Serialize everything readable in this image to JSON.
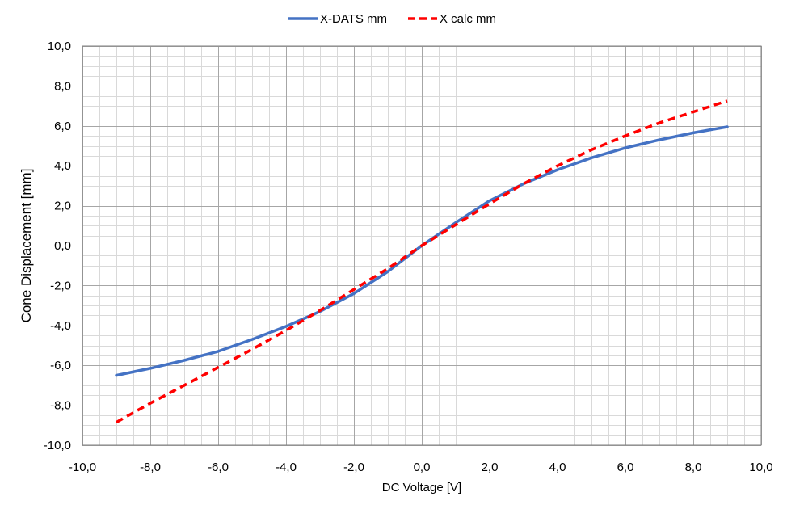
{
  "chart_data": {
    "type": "line",
    "xlabel": "DC Voltage [V]",
    "ylabel": "Cone Displacement  [mm]",
    "xlim": [
      -10,
      10
    ],
    "ylim": [
      -10,
      10
    ],
    "major_step": 2,
    "minor_step": 0.5,
    "grid": true,
    "legend": {
      "placement": "top-center"
    },
    "x_tick_labels": [
      "-10,0",
      "-8,0",
      "-6,0",
      "-4,0",
      "-2,0",
      "0,0",
      "2,0",
      "4,0",
      "6,0",
      "8,0",
      "10,0"
    ],
    "y_tick_labels": [
      "10,0",
      "8,0",
      "6,0",
      "4,0",
      "2,0",
      "0,0",
      "-2,0",
      "-4,0",
      "-6,0",
      "-8,0",
      "-10,0"
    ],
    "series": [
      {
        "name": "X-DATS mm",
        "color": "#4472C4",
        "style": "solid",
        "points": [
          [
            -9,
            -6.5
          ],
          [
            -8,
            -6.15
          ],
          [
            -7,
            -5.75
          ],
          [
            -6,
            -5.3
          ],
          [
            -5,
            -4.7
          ],
          [
            -4,
            -4.05
          ],
          [
            -3,
            -3.3
          ],
          [
            -2,
            -2.4
          ],
          [
            -1,
            -1.3
          ],
          [
            0,
            0.0
          ],
          [
            1,
            1.15
          ],
          [
            2,
            2.25
          ],
          [
            3,
            3.1
          ],
          [
            4,
            3.8
          ],
          [
            5,
            4.4
          ],
          [
            6,
            4.9
          ],
          [
            7,
            5.3
          ],
          [
            8,
            5.65
          ],
          [
            9,
            5.95
          ]
        ]
      },
      {
        "name": "X calc mm",
        "color": "#FF0000",
        "style": "dashed",
        "points": [
          [
            -9,
            -8.85
          ],
          [
            -8,
            -7.9
          ],
          [
            -7,
            -7.0
          ],
          [
            -6,
            -6.1
          ],
          [
            -5,
            -5.2
          ],
          [
            -4,
            -4.25
          ],
          [
            -3,
            -3.25
          ],
          [
            -2,
            -2.2
          ],
          [
            -1,
            -1.15
          ],
          [
            0,
            0.0
          ],
          [
            1,
            1.05
          ],
          [
            2,
            2.1
          ],
          [
            3,
            3.1
          ],
          [
            4,
            4.0
          ],
          [
            5,
            4.8
          ],
          [
            6,
            5.5
          ],
          [
            7,
            6.15
          ],
          [
            8,
            6.7
          ],
          [
            9,
            7.25
          ]
        ]
      }
    ]
  }
}
